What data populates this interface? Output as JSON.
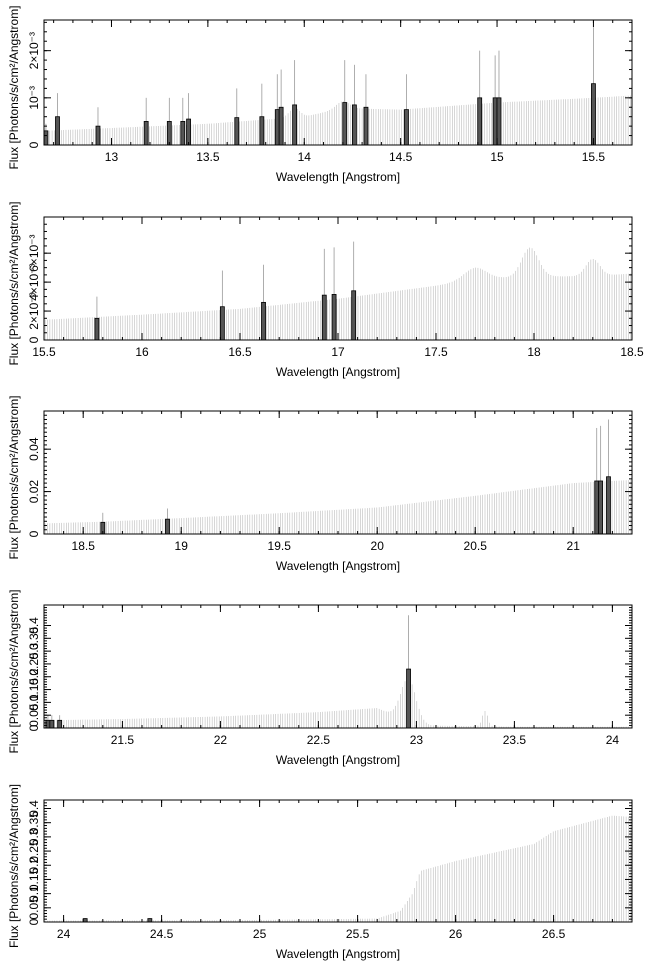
{
  "chart_data": [
    {
      "type": "bar",
      "xlabel": "Wavelength [Angstrom]",
      "ylabel": "Flux [Photons/s/cm²/Angstrom]",
      "xlim": [
        12.65,
        15.7
      ],
      "ylim": [
        0,
        0.00265
      ],
      "x_ticks": [
        13,
        13.5,
        14,
        14.5,
        15,
        15.5
      ],
      "x_tick_labels": [
        "13",
        "13.5",
        "14",
        "14.5",
        "15",
        "15.5"
      ],
      "y_ticks": [
        0,
        0.001,
        0.002
      ],
      "y_tick_labels": [
        "0",
        "10⁻³",
        "2×10⁻³"
      ],
      "y_minor_step": 0.0002,
      "x_minor_step": 0.1,
      "continuum": [
        [
          12.65,
          0.0003
        ],
        [
          13.0,
          0.00036
        ],
        [
          13.5,
          0.00045
        ],
        [
          14.0,
          0.0006
        ],
        [
          14.2,
          0.00078
        ],
        [
          14.5,
          0.00075
        ],
        [
          15.0,
          0.0009
        ],
        [
          15.5,
          0.001
        ],
        [
          15.7,
          0.00105
        ]
      ],
      "bumps": [
        [
          13.95,
          0.04,
          0.0002
        ],
        [
          14.2,
          0.05,
          0.00015
        ]
      ],
      "lines": [
        [
          12.66,
          0.0003,
          0.00045
        ],
        [
          12.72,
          0.0006,
          0.0011
        ],
        [
          12.93,
          0.0004,
          0.0008
        ],
        [
          13.18,
          0.0005,
          0.001
        ],
        [
          13.3,
          0.0005,
          0.001
        ],
        [
          13.37,
          0.0005,
          0.001
        ],
        [
          13.4,
          0.00055,
          0.0011
        ],
        [
          13.65,
          0.00058,
          0.0012
        ],
        [
          13.78,
          0.0006,
          0.0013
        ],
        [
          13.86,
          0.00075,
          0.0015
        ],
        [
          13.88,
          0.0008,
          0.0016
        ],
        [
          13.95,
          0.00085,
          0.0018
        ],
        [
          14.21,
          0.0009,
          0.0018
        ],
        [
          14.26,
          0.00085,
          0.0017
        ],
        [
          14.32,
          0.0008,
          0.0015
        ],
        [
          14.53,
          0.00075,
          0.0015
        ],
        [
          14.91,
          0.001,
          0.002
        ],
        [
          14.99,
          0.001,
          0.0019
        ],
        [
          15.01,
          0.001,
          0.002
        ],
        [
          15.5,
          0.0013,
          0.0025
        ]
      ]
    },
    {
      "type": "bar",
      "xlabel": "Wavelength [Angstrom]",
      "ylabel": "Flux [Photons/s/cm²/Angstrom]",
      "xlim": [
        15.5,
        18.5
      ],
      "ylim": [
        0,
        0.0085
      ],
      "x_ticks": [
        15.5,
        16,
        16.5,
        17,
        17.5,
        18,
        18.5
      ],
      "x_tick_labels": [
        "15.5",
        "16",
        "16.5",
        "17",
        "17.5",
        "18",
        "18.5"
      ],
      "y_ticks": [
        0,
        0.002,
        0.004,
        0.006
      ],
      "y_tick_labels": [
        "0",
        "2×10⁻³",
        "4×10⁻³",
        "6×10⁻³"
      ],
      "y_minor_step": 0.0005,
      "x_minor_step": 0.1,
      "continuum": [
        [
          15.5,
          0.0014
        ],
        [
          16.0,
          0.00175
        ],
        [
          16.5,
          0.00215
        ],
        [
          17.0,
          0.00285
        ],
        [
          17.5,
          0.00375
        ],
        [
          17.7,
          0.0042
        ],
        [
          18.0,
          0.0044
        ],
        [
          18.3,
          0.0044
        ],
        [
          18.5,
          0.0046
        ]
      ],
      "bumps": [
        [
          17.98,
          0.06,
          0.002
        ],
        [
          18.3,
          0.05,
          0.0012
        ],
        [
          17.7,
          0.08,
          0.0008
        ]
      ],
      "lines": [
        [
          15.77,
          0.0015,
          0.003
        ],
        [
          16.41,
          0.0023,
          0.0048
        ],
        [
          16.62,
          0.0026,
          0.0052
        ],
        [
          16.93,
          0.0031,
          0.0063
        ],
        [
          16.98,
          0.00315,
          0.0064
        ],
        [
          17.08,
          0.0034,
          0.0068
        ]
      ]
    },
    {
      "type": "bar",
      "xlabel": "Wavelength [Angstrom]",
      "ylabel": "Flux [Photons/s/cm²/Angstrom]",
      "xlim": [
        18.3,
        21.3
      ],
      "ylim": [
        0,
        0.058
      ],
      "x_ticks": [
        18.5,
        19,
        19.5,
        20,
        20.5,
        21
      ],
      "x_tick_labels": [
        "18.5",
        "19",
        "19.5",
        "20",
        "20.5",
        "21"
      ],
      "y_ticks": [
        0,
        0.02,
        0.04
      ],
      "y_tick_labels": [
        "0",
        "0.02",
        "0.04"
      ],
      "y_minor_step": 0.002,
      "x_minor_step": 0.1,
      "continuum": [
        [
          18.3,
          0.005
        ],
        [
          18.6,
          0.0058
        ],
        [
          19.0,
          0.0075
        ],
        [
          19.5,
          0.0098
        ],
        [
          20.0,
          0.0125
        ],
        [
          20.5,
          0.018
        ],
        [
          21.0,
          0.024
        ],
        [
          21.3,
          0.0255
        ]
      ],
      "bumps": [],
      "lines": [
        [
          18.6,
          0.0055,
          0.01
        ],
        [
          18.93,
          0.007,
          0.012
        ],
        [
          21.12,
          0.025,
          0.05
        ],
        [
          21.14,
          0.025,
          0.051
        ],
        [
          21.18,
          0.027,
          0.054
        ]
      ]
    },
    {
      "type": "bar",
      "xlabel": "Wavelength [Angstrom]",
      "ylabel": "Flux [Photons/s/cm²/Angstrom]",
      "xlim": [
        21.1,
        24.1
      ],
      "ylim": [
        0,
        0.48
      ],
      "x_ticks": [
        21.5,
        22,
        22.5,
        23,
        23.5,
        24
      ],
      "x_tick_labels": [
        "21.5",
        "22",
        "22.5",
        "23",
        "23.5",
        "24"
      ],
      "y_ticks": [
        0,
        0.05,
        0.1,
        0.15,
        0.2,
        0.25,
        0.3,
        0.35,
        0.4
      ],
      "y_tick_labels": [
        "0",
        "0.05",
        "0.1",
        "0.15",
        "0.2",
        "0.25",
        "0.3",
        "0.35",
        "0.4"
      ],
      "y_minor_step": 0.01,
      "x_minor_step": 0.1,
      "continuum": [
        [
          21.1,
          0.03
        ],
        [
          21.5,
          0.035
        ],
        [
          22.0,
          0.045
        ],
        [
          22.5,
          0.062
        ],
        [
          22.8,
          0.078
        ],
        [
          23.0,
          0.01
        ],
        [
          23.5,
          0.005
        ],
        [
          24.1,
          0.005
        ]
      ],
      "bumps": [
        [
          22.96,
          0.055,
          0.17
        ],
        [
          23.35,
          0.02,
          0.06
        ]
      ],
      "lines": [
        [
          21.12,
          0.03,
          0.05
        ],
        [
          21.14,
          0.03,
          0.05
        ],
        [
          21.18,
          0.03,
          0.05
        ],
        [
          22.96,
          0.23,
          0.44
        ]
      ]
    },
    {
      "type": "bar",
      "xlabel": "Wavelength [Angstrom]",
      "ylabel": "Flux [Photons/s/cm²/Angstrom]",
      "xlim": [
        23.9,
        26.9
      ],
      "ylim": [
        0,
        0.43
      ],
      "x_ticks": [
        24,
        24.5,
        25,
        25.5,
        26,
        26.5
      ],
      "x_tick_labels": [
        "24",
        "24.5",
        "25",
        "25.5",
        "26",
        "26.5"
      ],
      "y_ticks": [
        0,
        0.05,
        0.1,
        0.15,
        0.2,
        0.25,
        0.3,
        0.35,
        0.4
      ],
      "y_tick_labels": [
        "0",
        "0.05",
        "0.1",
        "0.15",
        "0.2",
        "0.25",
        "0.3",
        "0.35",
        "0.4"
      ],
      "y_minor_step": 0.01,
      "x_minor_step": 0.1,
      "continuum": [
        [
          23.9,
          0.005
        ],
        [
          25.0,
          0.007
        ],
        [
          25.6,
          0.012
        ],
        [
          25.72,
          0.04
        ],
        [
          25.78,
          0.1
        ],
        [
          25.82,
          0.18
        ],
        [
          26.0,
          0.215
        ],
        [
          26.4,
          0.275
        ],
        [
          26.5,
          0.32
        ],
        [
          26.8,
          0.375
        ],
        [
          26.9,
          0.37
        ]
      ],
      "bumps": [],
      "lines": [
        [
          24.11,
          0.012,
          0.014
        ],
        [
          24.44,
          0.012,
          0.014
        ]
      ]
    }
  ]
}
